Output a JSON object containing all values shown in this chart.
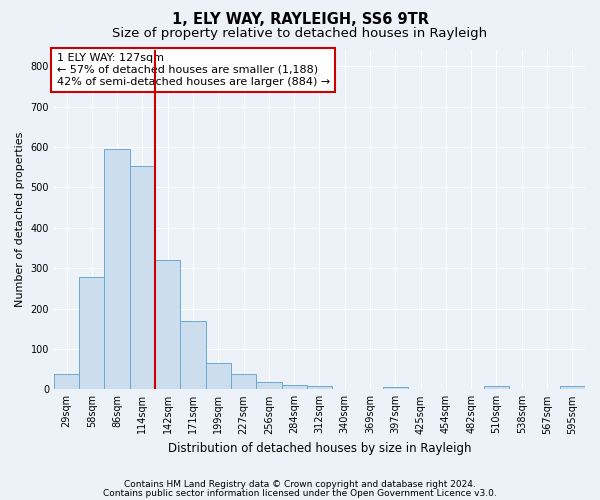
{
  "title": "1, ELY WAY, RAYLEIGH, SS6 9TR",
  "subtitle": "Size of property relative to detached houses in Rayleigh",
  "xlabel": "Distribution of detached houses by size in Rayleigh",
  "ylabel": "Number of detached properties",
  "bar_color": "#ccdded",
  "bar_edge_color": "#6aaad4",
  "background_color": "#edf2f9",
  "grid_color": "#ffffff",
  "categories": [
    "29sqm",
    "58sqm",
    "86sqm",
    "114sqm",
    "142sqm",
    "171sqm",
    "199sqm",
    "227sqm",
    "256sqm",
    "284sqm",
    "312sqm",
    "340sqm",
    "369sqm",
    "397sqm",
    "425sqm",
    "454sqm",
    "482sqm",
    "510sqm",
    "538sqm",
    "567sqm",
    "595sqm"
  ],
  "values": [
    38,
    278,
    595,
    553,
    320,
    168,
    65,
    38,
    18,
    10,
    8,
    0,
    0,
    5,
    0,
    0,
    0,
    8,
    0,
    0,
    8
  ],
  "ylim": [
    0,
    840
  ],
  "yticks": [
    0,
    100,
    200,
    300,
    400,
    500,
    600,
    700,
    800
  ],
  "vline_x": 3.5,
  "vline_color": "#cc0000",
  "annotation_text": "1 ELY WAY: 127sqm\n← 57% of detached houses are smaller (1,188)\n42% of semi-detached houses are larger (884) →",
  "annotation_box_color": "#ffffff",
  "annotation_box_edge": "#cc0000",
  "footer1": "Contains HM Land Registry data © Crown copyright and database right 2024.",
  "footer2": "Contains public sector information licensed under the Open Government Licence v3.0.",
  "title_fontsize": 10.5,
  "subtitle_fontsize": 9.5,
  "xlabel_fontsize": 8.5,
  "ylabel_fontsize": 8,
  "tick_fontsize": 7,
  "annotation_fontsize": 8,
  "footer_fontsize": 6.5
}
